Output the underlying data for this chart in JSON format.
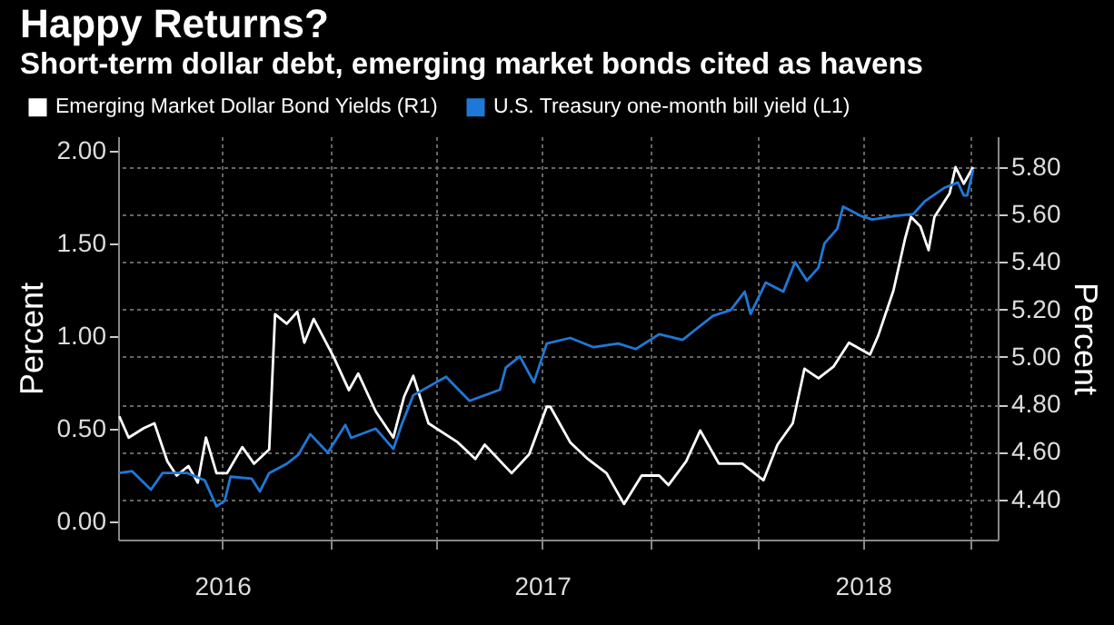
{
  "chart_data": {
    "type": "line",
    "title": "Happy Returns?",
    "subtitle": "Short-term dollar debt, emerging market bonds cited as havens",
    "ylabel": "Percent",
    "y2label": "Percent",
    "legend": "top left",
    "grid": true,
    "xlim": [
      "2016-07-04",
      "2018-07-25"
    ],
    "xticks": [
      {
        "value": "2016-10-01",
        "label": "2016"
      },
      {
        "value": "2017-01-01",
        "label": null
      },
      {
        "value": "2017-04-01",
        "label": null
      },
      {
        "value": "2017-07-01",
        "label": "2017"
      },
      {
        "value": "2017-10-01",
        "label": null
      },
      {
        "value": "2018-01-01",
        "label": null
      },
      {
        "value": "2018-04-01",
        "label": "2018"
      },
      {
        "value": "2018-07-01",
        "label": null
      }
    ],
    "ylim": [
      -0.1,
      2.08
    ],
    "yticks": [
      {
        "value": 0,
        "label": "0.00"
      },
      {
        "value": 0.5,
        "label": "0.50"
      },
      {
        "value": 1,
        "label": "1.00"
      },
      {
        "value": 1.5,
        "label": "1.50"
      },
      {
        "value": 2,
        "label": "2.00"
      }
    ],
    "y2lim": [
      4.23,
      5.93
    ],
    "y2ticks": [
      {
        "value": 4.4,
        "label": "4.40"
      },
      {
        "value": 4.6,
        "label": "4.60"
      },
      {
        "value": 4.8,
        "label": "4.80"
      },
      {
        "value": 5,
        "label": "5.00"
      },
      {
        "value": 5.2,
        "label": "5.20"
      },
      {
        "value": 5.4,
        "label": "5.40"
      },
      {
        "value": 5.6,
        "label": "5.60"
      },
      {
        "value": 5.8,
        "label": "5.80"
      }
    ],
    "series": [
      {
        "name": "Emerging Market Dollar Bond Yields (R1)",
        "color": "#ffffff",
        "axis": "y2",
        "x": [
          "2016-07-05",
          "2016-07-13",
          "2016-07-26",
          "2016-08-04",
          "2016-08-15",
          "2016-08-23",
          "2016-09-02",
          "2016-09-10",
          "2016-09-17",
          "2016-09-26",
          "2016-10-05",
          "2016-10-18",
          "2016-10-28",
          "2016-11-10",
          "2016-11-15",
          "2016-11-25",
          "2016-12-04",
          "2016-12-10",
          "2016-12-18",
          "2017-01-04",
          "2017-01-17",
          "2017-01-25",
          "2017-02-09",
          "2017-02-24",
          "2017-03-05",
          "2017-03-13",
          "2017-03-26",
          "2017-04-20",
          "2017-05-05",
          "2017-05-13",
          "2017-06-05",
          "2017-06-20",
          "2017-07-05",
          "2017-07-08",
          "2017-07-25",
          "2017-08-09",
          "2017-08-25",
          "2017-09-09",
          "2017-09-24",
          "2017-10-09",
          "2017-10-17",
          "2017-11-01",
          "2017-11-13",
          "2017-11-29",
          "2017-12-19",
          "2018-01-06",
          "2018-01-18",
          "2018-01-31",
          "2018-02-10",
          "2018-02-22",
          "2018-03-07",
          "2018-03-20",
          "2018-04-07",
          "2018-04-14",
          "2018-04-27",
          "2018-05-07",
          "2018-05-12",
          "2018-05-20",
          "2018-05-27",
          "2018-06-01",
          "2018-06-14",
          "2018-06-19",
          "2018-06-26",
          "2018-07-04"
        ],
        "values": [
          4.75,
          4.66,
          4.7,
          4.72,
          4.56,
          4.5,
          4.54,
          4.47,
          4.66,
          4.51,
          4.51,
          4.62,
          4.55,
          4.61,
          5.18,
          5.14,
          5.19,
          5.06,
          5.16,
          5.0,
          4.86,
          4.93,
          4.77,
          4.66,
          4.83,
          4.92,
          4.72,
          4.64,
          4.57,
          4.63,
          4.51,
          4.59,
          4.79,
          4.79,
          4.64,
          4.57,
          4.51,
          4.38,
          4.5,
          4.5,
          4.46,
          4.56,
          4.69,
          4.55,
          4.55,
          4.48,
          4.63,
          4.72,
          4.95,
          4.91,
          4.96,
          5.06,
          5.01,
          5.09,
          5.28,
          5.5,
          5.59,
          5.55,
          5.45,
          5.59,
          5.69,
          5.8,
          5.73,
          5.8
        ]
      },
      {
        "name": "U.S. Treasury one-month bill yield  (L1)",
        "color": "#1f78d6",
        "axis": "y",
        "x": [
          "2016-07-05",
          "2016-07-16",
          "2016-08-01",
          "2016-08-11",
          "2016-09-01",
          "2016-09-16",
          "2016-09-26",
          "2016-10-03",
          "2016-10-08",
          "2016-10-26",
          "2016-11-02",
          "2016-11-10",
          "2016-11-25",
          "2016-12-05",
          "2016-12-15",
          "2016-12-30",
          "2017-01-14",
          "2017-01-19",
          "2017-02-09",
          "2017-02-24",
          "2017-03-03",
          "2017-03-13",
          "2017-04-10",
          "2017-04-30",
          "2017-05-26",
          "2017-05-31",
          "2017-06-12",
          "2017-06-24",
          "2017-07-05",
          "2017-07-25",
          "2017-08-14",
          "2017-09-04",
          "2017-09-19",
          "2017-10-09",
          "2017-10-29",
          "2017-11-24",
          "2017-12-09",
          "2017-12-21",
          "2017-12-26",
          "2018-01-08",
          "2018-01-23",
          "2018-02-02",
          "2018-02-12",
          "2018-02-22",
          "2018-02-27",
          "2018-03-10",
          "2018-03-15",
          "2018-03-30",
          "2018-04-09",
          "2018-04-29",
          "2018-05-14",
          "2018-05-24",
          "2018-06-09",
          "2018-06-21",
          "2018-06-26",
          "2018-06-29",
          "2018-07-04"
        ],
        "values": [
          0.26,
          0.27,
          0.17,
          0.26,
          0.26,
          0.22,
          0.08,
          0.11,
          0.24,
          0.23,
          0.16,
          0.26,
          0.31,
          0.36,
          0.47,
          0.37,
          0.52,
          0.45,
          0.5,
          0.39,
          0.52,
          0.68,
          0.78,
          0.65,
          0.71,
          0.83,
          0.89,
          0.75,
          0.96,
          0.99,
          0.94,
          0.96,
          0.93,
          1.01,
          0.98,
          1.11,
          1.14,
          1.24,
          1.12,
          1.29,
          1.24,
          1.4,
          1.3,
          1.37,
          1.5,
          1.58,
          1.7,
          1.65,
          1.63,
          1.65,
          1.66,
          1.73,
          1.8,
          1.83,
          1.76,
          1.76,
          1.9
        ]
      }
    ]
  }
}
